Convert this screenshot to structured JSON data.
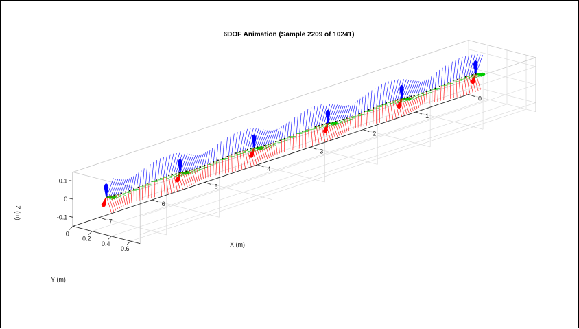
{
  "chart_data": {
    "type": "line",
    "title": "6DOF Animation (Sample 2209 of 10241)",
    "xlabel": "X (m)",
    "ylabel": "Y (m)",
    "zlabel": "Z (m)",
    "xlim": [
      0,
      7.5
    ],
    "ylim": [
      0,
      0.7
    ],
    "zlim": [
      -0.15,
      0.15
    ],
    "x_ticks": [
      "0",
      "1",
      "2",
      "3",
      "4",
      "5",
      "6",
      "7"
    ],
    "y_ticks": [
      "0",
      "0.2",
      "0.4",
      "0.6"
    ],
    "z_ticks": [
      "0.1",
      "0",
      "-0.1"
    ],
    "grid": true,
    "colors": {
      "path": "#000000",
      "x_axis_vector": "#ff0000",
      "y_axis_vector": "#00cc00",
      "z_axis_vector": "#0000ff"
    }
  }
}
